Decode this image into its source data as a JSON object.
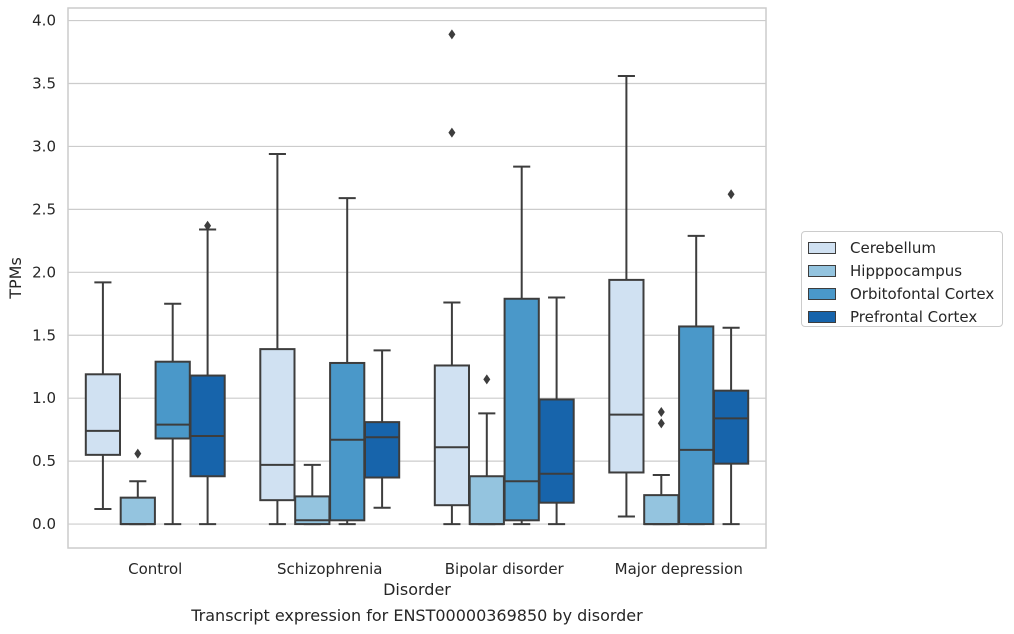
{
  "chart_data": {
    "type": "boxplot",
    "xlabel": "Disorder",
    "ylabel": "TPMs",
    "caption": "Transcript expression for ENST00000369850 by disorder",
    "ylim": [
      -0.19,
      4.1
    ],
    "yticks": [
      "0.0",
      "0.5",
      "1.0",
      "1.5",
      "2.0",
      "2.5",
      "3.0",
      "3.5",
      "4.0"
    ],
    "grid": true,
    "legend_position": "right",
    "categories": [
      "Control",
      "Schizophrenia",
      "Bipolar disorder",
      "Major depression"
    ],
    "series": [
      {
        "name": "Cerebellum",
        "color": "#d0e1f2",
        "boxes": [
          {
            "whislo": 0.12,
            "q1": 0.55,
            "med": 0.74,
            "q3": 1.19,
            "whishi": 1.92,
            "fliers": []
          },
          {
            "whislo": 0.0,
            "q1": 0.19,
            "med": 0.47,
            "q3": 1.39,
            "whishi": 2.94,
            "fliers": []
          },
          {
            "whislo": 0.0,
            "q1": 0.15,
            "med": 0.61,
            "q3": 1.26,
            "whishi": 1.76,
            "fliers": [
              3.11,
              3.89
            ]
          },
          {
            "whislo": 0.06,
            "q1": 0.41,
            "med": 0.87,
            "q3": 1.94,
            "whishi": 3.56,
            "fliers": []
          }
        ]
      },
      {
        "name": "Hipppocampus",
        "color": "#94c4df",
        "boxes": [
          {
            "whislo": 0.0,
            "q1": 0.0,
            "med": 0.0,
            "q3": 0.21,
            "whishi": 0.34,
            "fliers": [
              0.56
            ]
          },
          {
            "whislo": 0.0,
            "q1": 0.0,
            "med": 0.03,
            "q3": 0.22,
            "whishi": 0.47,
            "fliers": []
          },
          {
            "whislo": 0.0,
            "q1": 0.0,
            "med": 0.0,
            "q3": 0.38,
            "whishi": 0.88,
            "fliers": [
              1.15
            ]
          },
          {
            "whislo": 0.0,
            "q1": 0.0,
            "med": 0.0,
            "q3": 0.23,
            "whishi": 0.39,
            "fliers": [
              0.8,
              0.89
            ]
          }
        ]
      },
      {
        "name": "Orbitofontal Cortex",
        "color": "#4a98c9",
        "boxes": [
          {
            "whislo": 0.0,
            "q1": 0.68,
            "med": 0.79,
            "q3": 1.29,
            "whishi": 1.75,
            "fliers": []
          },
          {
            "whislo": 0.0,
            "q1": 0.03,
            "med": 0.67,
            "q3": 1.28,
            "whishi": 2.59,
            "fliers": []
          },
          {
            "whislo": 0.0,
            "q1": 0.03,
            "med": 0.34,
            "q3": 1.79,
            "whishi": 2.84,
            "fliers": []
          },
          {
            "whislo": 0.0,
            "q1": 0.0,
            "med": 0.59,
            "q3": 1.57,
            "whishi": 2.29,
            "fliers": []
          }
        ]
      },
      {
        "name": "Prefrontal Cortex",
        "color": "#1764ab",
        "boxes": [
          {
            "whislo": 0.0,
            "q1": 0.38,
            "med": 0.7,
            "q3": 1.18,
            "whishi": 2.34,
            "fliers": [
              2.37
            ]
          },
          {
            "whislo": 0.13,
            "q1": 0.37,
            "med": 0.69,
            "q3": 0.81,
            "whishi": 1.38,
            "fliers": []
          },
          {
            "whislo": 0.0,
            "q1": 0.17,
            "med": 0.4,
            "q3": 0.99,
            "whishi": 1.8,
            "fliers": []
          },
          {
            "whislo": 0.0,
            "q1": 0.48,
            "med": 0.84,
            "q3": 1.06,
            "whishi": 1.56,
            "fliers": [
              2.62
            ]
          }
        ]
      }
    ]
  }
}
